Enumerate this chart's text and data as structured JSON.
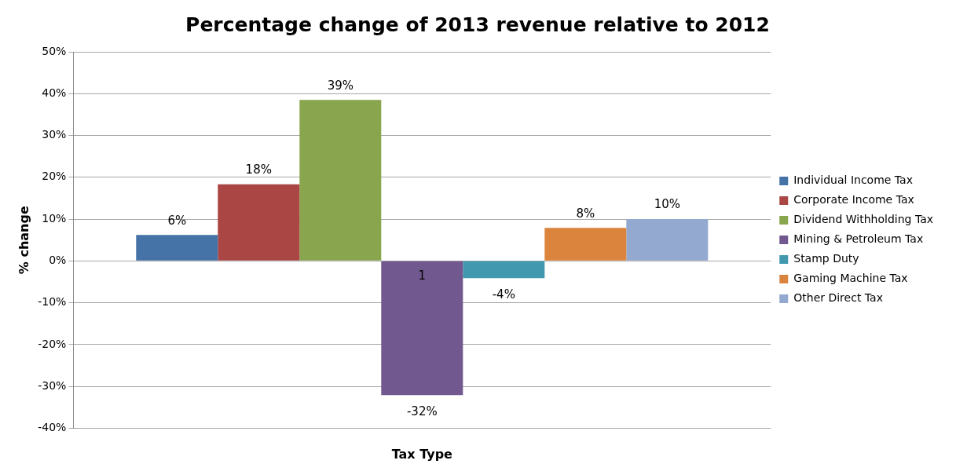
{
  "chart_data": {
    "type": "bar",
    "title": "Percentage change of 2013 revenue relative to 2012",
    "xlabel": "Tax Type",
    "ylabel": "% change",
    "categories": [
      null
    ],
    "series": [
      {
        "name": "Individual Income Tax",
        "color": "#4572a7",
        "values": [
          6.2
        ],
        "value_labels": [
          "6%"
        ]
      },
      {
        "name": "Corporate Income Tax",
        "color": "#aa4643",
        "values": [
          18.3
        ],
        "value_labels": [
          "18%"
        ]
      },
      {
        "name": "Dividend Withholding Tax",
        "color": "#89a54e",
        "values": [
          38.5
        ],
        "value_labels": [
          "39%"
        ]
      },
      {
        "name": "Mining & Petroleum Tax",
        "color": "#71588f",
        "values": [
          -32.1
        ],
        "value_labels": [
          "-32%"
        ]
      },
      {
        "name": "Stamp Duty",
        "color": "#4198af",
        "values": [
          -4.1
        ],
        "value_labels": [
          "-4%"
        ]
      },
      {
        "name": "Gaming Machine Tax",
        "color": "#db843d",
        "values": [
          7.9
        ],
        "value_labels": [
          "8%"
        ]
      },
      {
        "name": "Other Direct Tax",
        "color": "#93a9cf",
        "values": [
          10.0
        ],
        "value_labels": [
          "10%"
        ]
      }
    ],
    "annotations": [
      "1"
    ],
    "ylim": [
      -40,
      50
    ],
    "yticks": [
      {
        "value": -40,
        "label": "-40%"
      },
      {
        "value": -30,
        "label": "-30%"
      },
      {
        "value": -20,
        "label": "-20%"
      },
      {
        "value": -10,
        "label": "-10%"
      },
      {
        "value": 0,
        "label": "0%"
      },
      {
        "value": 10,
        "label": "10%"
      },
      {
        "value": 20,
        "label": "20%"
      },
      {
        "value": 30,
        "label": "30%"
      },
      {
        "value": 40,
        "label": "40%"
      },
      {
        "value": 50,
        "label": "50%"
      }
    ],
    "grid": "y",
    "legend": "right"
  }
}
